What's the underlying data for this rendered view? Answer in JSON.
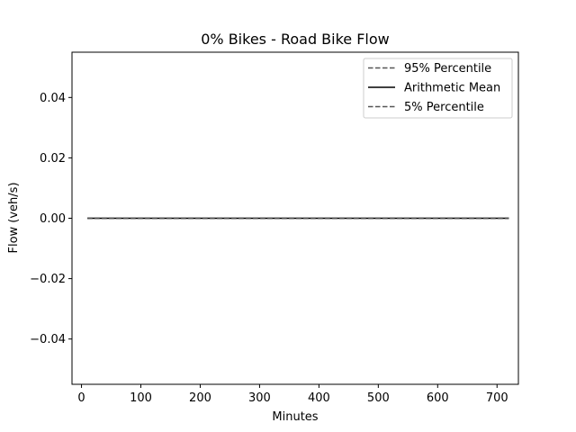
{
  "chart_data": {
    "type": "line",
    "title": "0% Bikes - Road Bike Flow",
    "xlabel": "Minutes",
    "ylabel": "Flow (veh/s)",
    "xlim": [
      -16,
      736
    ],
    "ylim": [
      -0.055,
      0.055
    ],
    "x_ticks": [
      0,
      100,
      200,
      300,
      400,
      500,
      600,
      700
    ],
    "x_tick_labels": [
      "0",
      "100",
      "200",
      "300",
      "400",
      "500",
      "600",
      "700"
    ],
    "y_ticks": [
      -0.04,
      -0.02,
      0.0,
      0.02,
      0.04
    ],
    "y_tick_labels": [
      "−0.04",
      "−0.02",
      "0.00",
      "0.02",
      "0.04"
    ],
    "grid": false,
    "legend_position": "top-right",
    "series": [
      {
        "name": "95% Percentile",
        "style": "dashed",
        "color": "#555555",
        "x": [
          10,
          720
        ],
        "values": [
          0,
          0
        ]
      },
      {
        "name": "Arithmetic Mean",
        "style": "solid",
        "color": "#000000",
        "x": [
          10,
          720
        ],
        "values": [
          0,
          0
        ]
      },
      {
        "name": "5% Percentile",
        "style": "dashed",
        "color": "#555555",
        "x": [
          10,
          720
        ],
        "values": [
          0,
          0
        ]
      }
    ]
  }
}
